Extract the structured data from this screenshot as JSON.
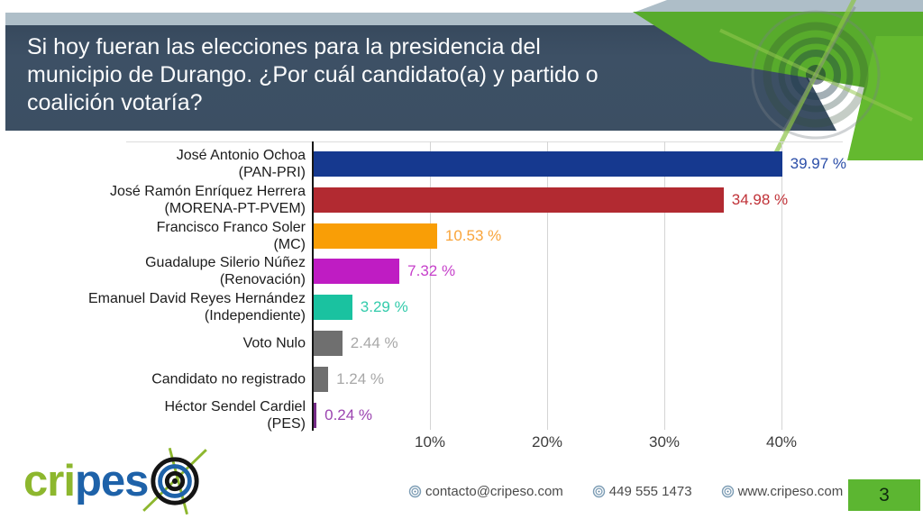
{
  "header": {
    "title": "Si hoy fueran las elecciones para la presidencia del municipio de Durango. ¿Por cuál candidato(a) y partido o coalición votaría?",
    "title_lines": [
      "Si hoy fueran las elecciones para la presidencia del",
      "municipio de Durango. ¿Por cuál candidato(a) y partido o",
      "coalición votaría?"
    ]
  },
  "chart_data": {
    "type": "bar",
    "orientation": "horizontal",
    "title": "",
    "xlabel": "",
    "ylabel": "",
    "xlim": [
      0,
      44
    ],
    "grid": true,
    "x_ticks": [
      {
        "value": 10,
        "label": "10%"
      },
      {
        "value": 20,
        "label": "20%"
      },
      {
        "value": 30,
        "label": "30%"
      },
      {
        "value": 40,
        "label": "40%"
      }
    ],
    "categories": [
      "José Antonio Ochoa (PAN-PRI)",
      "José Ramón Enríquez Herrera (MORENA-PT-PVEM)",
      "Francisco Franco Soler (MC)",
      "Guadalupe Silerio Núñez (Renovación)",
      "Emanuel David Reyes Hernández (Independiente)",
      "Voto Nulo",
      "Candidato no registrado",
      "Héctor Sendel Cardiel (PES)"
    ],
    "values": [
      39.97,
      34.98,
      10.53,
      7.32,
      3.29,
      2.44,
      1.24,
      0.24
    ],
    "bars": [
      {
        "candidate": "José Antonio Ochoa",
        "party": "(PAN-PRI)",
        "value": 39.97,
        "value_label": "39.97 %",
        "bar_color": "#16398f",
        "label_color": "#2b4ea8"
      },
      {
        "candidate": "José Ramón Enríquez Herrera",
        "party": "(MORENA-PT-PVEM)",
        "value": 34.98,
        "value_label": "34.98 %",
        "bar_color": "#b22a31",
        "label_color": "#c03238"
      },
      {
        "candidate": "Francisco Franco Soler",
        "party": "(MC)",
        "value": 10.53,
        "value_label": "10.53 %",
        "bar_color": "#f99e06",
        "label_color": "#f9a43a"
      },
      {
        "candidate": "Guadalupe Silerio Núñez",
        "party": "(Renovación)",
        "value": 7.32,
        "value_label": "7.32 %",
        "bar_color": "#bf1cc3",
        "label_color": "#c63fca"
      },
      {
        "candidate": "Emanuel David Reyes Hernández",
        "party": "(Independiente)",
        "value": 3.29,
        "value_label": "3.29 %",
        "bar_color": "#1ac2a0",
        "label_color": "#33cbab"
      },
      {
        "candidate": "Voto Nulo",
        "party": "",
        "value": 2.44,
        "value_label": "2.44 %",
        "bar_color": "#6f6f6f",
        "label_color": "#a8a8a8"
      },
      {
        "candidate": "Candidato no registrado",
        "party": "",
        "value": 1.24,
        "value_label": "1.24 %",
        "bar_color": "#6f6f6f",
        "label_color": "#a8a8a8"
      },
      {
        "candidate": "Héctor Sendel Cardiel",
        "party": "(PES)",
        "value": 0.24,
        "value_label": "0.24 %",
        "bar_color": "#762c87",
        "label_color": "#9b44b0"
      }
    ]
  },
  "footer": {
    "logo": {
      "text_green": "cri",
      "text_blue": "pes",
      "icon": "target-icon"
    },
    "contacts": [
      {
        "icon": "target-icon",
        "text": "contacto@cripeso.com"
      },
      {
        "icon": "target-icon",
        "text": "449 555 1473"
      },
      {
        "icon": "target-icon",
        "text": "www.cripeso.com"
      }
    ],
    "page_number": "3"
  },
  "colors": {
    "header_bg": "#3c4f63",
    "stripe": "#aebec8",
    "accent_green_band": "#58ab2c",
    "accent_green_bright": "#64b92f",
    "page_box": "#5cb631",
    "logo_green": "#8db72e",
    "logo_blue": "#1e62a9",
    "grid": "#d4d4d4",
    "axis": "#161616",
    "tick_text": "#3d3d3d",
    "category_text": "#1c1c1c",
    "footer_text": "#4a4a4a"
  }
}
